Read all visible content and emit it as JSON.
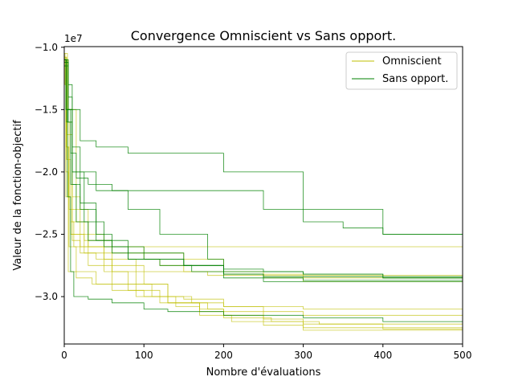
{
  "chart_data": {
    "type": "line",
    "title": "Convergence Omniscient vs Sans opport.",
    "xlabel": "Nombre d'évaluations",
    "ylabel": "Valeur de la fonction-objectif",
    "offset_label": "1e7",
    "xlim": [
      0,
      500
    ],
    "ylim": [
      -3.38,
      -0.995
    ],
    "xticks": [
      0,
      100,
      200,
      300,
      400,
      500
    ],
    "xtick_labels": [
      "0",
      "100",
      "200",
      "300",
      "400",
      "500"
    ],
    "yticks": [
      -1.0,
      -1.5,
      -2.0,
      -2.5,
      -3.0
    ],
    "ytick_labels": [
      "−1.0",
      "−1.5",
      "−2.0",
      "−2.5",
      "−3.0"
    ],
    "legend": {
      "position": "top-right",
      "entries": [
        "Omniscient",
        "Sans opport."
      ]
    },
    "grid": false,
    "colors": {
      "Omniscient": "#bfbf00",
      "Sans opport.": "#008000"
    },
    "series": [
      {
        "name": "Omniscient",
        "group": "Omniscient",
        "x": [
          0,
          1,
          3,
          5,
          8,
          12,
          500
        ],
        "y": [
          -1.05,
          -1.3,
          -1.8,
          -2.2,
          -2.4,
          -2.6,
          -2.6
        ]
      },
      {
        "name": "Omniscient",
        "group": "Omniscient",
        "x": [
          0,
          2,
          6,
          10,
          20,
          40,
          60,
          180,
          500
        ],
        "y": [
          -1.1,
          -1.6,
          -2.3,
          -2.55,
          -2.65,
          -2.7,
          -2.8,
          -2.83,
          -2.83
        ]
      },
      {
        "name": "Omniscient",
        "group": "Omniscient",
        "x": [
          0,
          2,
          5,
          15,
          35,
          60,
          100,
          130,
          180,
          200,
          300,
          500
        ],
        "y": [
          -1.08,
          -2.0,
          -2.8,
          -2.85,
          -2.9,
          -2.95,
          -3.0,
          -3.05,
          -3.1,
          -3.12,
          -3.15,
          -3.15
        ]
      },
      {
        "name": "Omniscient",
        "group": "Omniscient",
        "x": [
          0,
          3,
          8,
          20,
          50,
          100,
          120,
          150,
          200,
          300,
          500
        ],
        "y": [
          -1.12,
          -1.9,
          -2.5,
          -2.6,
          -2.65,
          -2.7,
          -2.75,
          -2.8,
          -2.82,
          -2.85,
          -2.85
        ]
      },
      {
        "name": "Omniscient",
        "group": "Omniscient",
        "x": [
          0,
          4,
          10,
          30,
          60,
          100,
          130,
          160,
          200,
          300,
          500
        ],
        "y": [
          -1.05,
          -1.5,
          -2.3,
          -2.6,
          -2.75,
          -2.9,
          -3.0,
          -3.05,
          -3.08,
          -3.1,
          -3.1
        ]
      },
      {
        "name": "Omniscient",
        "group": "Omniscient",
        "x": [
          0,
          2,
          6,
          15,
          40,
          80,
          120,
          170,
          200,
          250,
          300,
          400,
          500
        ],
        "y": [
          -1.1,
          -1.8,
          -2.6,
          -2.8,
          -2.9,
          -2.95,
          -3.05,
          -3.1,
          -3.15,
          -3.18,
          -3.22,
          -3.26,
          -3.27
        ]
      },
      {
        "name": "Omniscient",
        "group": "Omniscient",
        "x": [
          0,
          3,
          10,
          25,
          50,
          80,
          110,
          140,
          170,
          210,
          250,
          300,
          500
        ],
        "y": [
          -1.15,
          -1.7,
          -2.4,
          -2.65,
          -2.8,
          -2.9,
          -3.0,
          -3.08,
          -3.15,
          -3.2,
          -3.23,
          -3.25,
          -3.25
        ]
      },
      {
        "name": "Omniscient",
        "group": "Omniscient",
        "x": [
          0,
          2,
          8,
          25,
          60,
          100,
          150,
          200,
          250,
          300,
          500
        ],
        "y": [
          -1.1,
          -2.2,
          -2.5,
          -2.55,
          -2.6,
          -2.65,
          -2.7,
          -2.8,
          -2.85,
          -2.88,
          -2.88
        ]
      },
      {
        "name": "Omniscient",
        "group": "Omniscient",
        "x": [
          0,
          3,
          10,
          20,
          50,
          90,
          130,
          170,
          200,
          260,
          320,
          500
        ],
        "y": [
          -1.08,
          -1.6,
          -2.2,
          -2.5,
          -2.7,
          -2.9,
          -3.05,
          -3.12,
          -3.17,
          -3.2,
          -3.22,
          -3.22
        ]
      },
      {
        "name": "Omniscient",
        "group": "Omniscient",
        "x": [
          0,
          5,
          15,
          30,
          60,
          90,
          150,
          200,
          250,
          300,
          500
        ],
        "y": [
          -1.1,
          -1.5,
          -2.4,
          -2.75,
          -2.9,
          -3.0,
          -3.02,
          -3.08,
          -3.2,
          -3.27,
          -3.27
        ]
      },
      {
        "name": "Sans opport.",
        "group": "Sans opport.",
        "x": [
          0,
          5,
          10,
          20,
          40,
          60,
          80,
          100,
          120,
          150,
          200,
          250,
          300,
          350,
          400,
          450,
          500
        ],
        "y": [
          -1.1,
          -1.3,
          -1.5,
          -1.75,
          -1.8,
          -1.8,
          -1.85,
          -1.85,
          -1.85,
          -1.85,
          -2.0,
          -2.0,
          -2.3,
          -2.3,
          -2.5,
          -2.5,
          -2.6
        ]
      },
      {
        "name": "Sans opport.",
        "group": "Sans opport.",
        "x": [
          0,
          3,
          8,
          15,
          30,
          60,
          100,
          150,
          200,
          250,
          300,
          350,
          400,
          500
        ],
        "y": [
          -1.15,
          -1.5,
          -1.85,
          -2.05,
          -2.1,
          -2.15,
          -2.15,
          -2.15,
          -2.15,
          -2.3,
          -2.4,
          -2.45,
          -2.5,
          -2.55
        ]
      },
      {
        "name": "Sans opport.",
        "group": "Sans opport.",
        "x": [
          0,
          5,
          10,
          20,
          40,
          60,
          100,
          150,
          200,
          250,
          300,
          350,
          400,
          450,
          500
        ],
        "y": [
          -1.12,
          -1.6,
          -2.0,
          -2.25,
          -2.5,
          -2.6,
          -2.65,
          -2.75,
          -2.82,
          -2.84,
          -2.84,
          -2.84,
          -2.85,
          -2.85,
          -2.85
        ]
      },
      {
        "name": "Sans opport.",
        "group": "Sans opport.",
        "x": [
          0,
          3,
          8,
          15,
          30,
          60,
          100,
          150,
          200,
          300,
          400,
          500
        ],
        "y": [
          -1.1,
          -1.6,
          -2.1,
          -2.4,
          -2.55,
          -2.65,
          -2.7,
          -2.75,
          -2.8,
          -2.82,
          -2.85,
          -2.85
        ]
      },
      {
        "name": "Sans opport.",
        "group": "Sans opport.",
        "x": [
          0,
          5,
          10,
          25,
          50,
          80,
          120,
          160,
          200,
          250,
          300,
          400,
          500
        ],
        "y": [
          -1.15,
          -1.4,
          -2.0,
          -2.4,
          -2.6,
          -2.7,
          -2.75,
          -2.8,
          -2.85,
          -2.88,
          -2.88,
          -2.88,
          -2.88
        ]
      },
      {
        "name": "Sans opport.",
        "group": "Sans opport.",
        "x": [
          0,
          3,
          10,
          20,
          40,
          80,
          150,
          200,
          250,
          300,
          500
        ],
        "y": [
          -1.1,
          -1.5,
          -2.1,
          -2.3,
          -2.55,
          -2.7,
          -2.75,
          -2.82,
          -2.85,
          -2.87,
          -2.87
        ]
      },
      {
        "name": "Sans opport.",
        "group": "Sans opport.",
        "x": [
          0,
          2,
          4,
          8,
          12,
          30,
          60,
          100,
          130,
          200,
          300,
          400,
          500
        ],
        "y": [
          -1.1,
          -1.5,
          -2.2,
          -2.8,
          -3.0,
          -3.02,
          -3.05,
          -3.1,
          -3.12,
          -3.15,
          -3.17,
          -3.2,
          -3.2
        ]
      },
      {
        "name": "Sans opport.",
        "group": "Sans opport.",
        "x": [
          0,
          5,
          10,
          20,
          40,
          80,
          120,
          180,
          200,
          250,
          300,
          400,
          500
        ],
        "y": [
          -1.12,
          -1.5,
          -1.8,
          -2.0,
          -2.15,
          -2.3,
          -2.5,
          -2.7,
          -2.78,
          -2.8,
          -2.82,
          -2.84,
          -2.86
        ]
      }
    ]
  }
}
